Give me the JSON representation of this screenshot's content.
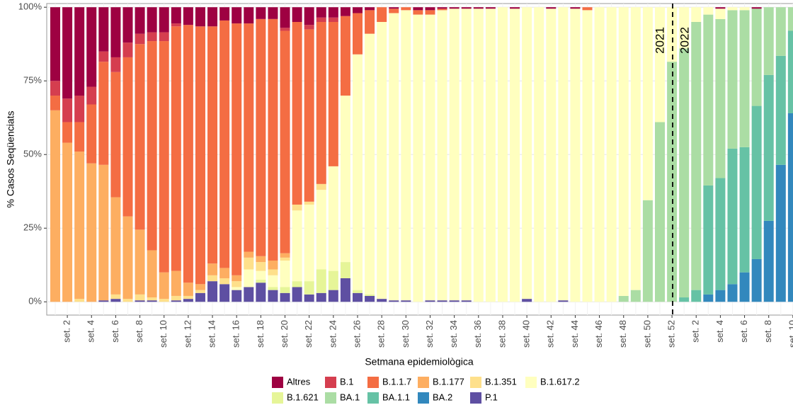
{
  "chart_data": {
    "type": "stacked-bar",
    "y_label": "% Casos Seqüenciats",
    "x_label": "Setmana epidemiològica",
    "annotations": [
      "2021",
      "2022"
    ],
    "legend": "bottom",
    "grid": true,
    "ylim": [
      -4.5,
      101.25
    ],
    "yticks": [
      {
        "value": 0,
        "label": "0%"
      },
      {
        "value": 25,
        "label": "25%"
      },
      {
        "value": 50,
        "label": "50%"
      },
      {
        "value": 75,
        "label": "75%"
      },
      {
        "value": 100,
        "label": "100%"
      }
    ],
    "categories": [
      null,
      "set. 2",
      null,
      "set. 4",
      null,
      "set. 6",
      null,
      "set. 8",
      null,
      "set. 10",
      null,
      "set. 12",
      null,
      "set. 14",
      null,
      "set. 16",
      null,
      "set. 18",
      null,
      "set. 20",
      null,
      "set. 22",
      null,
      "set. 24",
      null,
      "set. 26",
      null,
      "set. 28",
      null,
      "set. 30",
      null,
      "set. 32",
      null,
      "set. 34",
      null,
      "set. 36",
      null,
      "set. 38",
      null,
      "set. 40",
      null,
      "set. 42",
      null,
      "set. 44",
      null,
      "set. 46",
      null,
      "set. 48",
      null,
      "set. 50",
      null,
      "set. 52",
      null,
      "set. 2",
      null,
      "set. 4",
      null,
      "set. 6",
      null,
      "set. 8",
      null,
      "set. 10"
    ],
    "series": [
      {
        "name": "Altres",
        "color": "#9e0142",
        "values": [
          25,
          31,
          30,
          27,
          15,
          17,
          12,
          9,
          8.5,
          8.5,
          5.5,
          6,
          6.5,
          6.5,
          4.5,
          5.5,
          5.5,
          4,
          4,
          7,
          5,
          6,
          3.5,
          3.5,
          3,
          2,
          1,
          0,
          0.5,
          0,
          1,
          1,
          0.5,
          0.5,
          0.5,
          0.5,
          0.5,
          0,
          0.5,
          0,
          0,
          0.5,
          0,
          0.5,
          0,
          0,
          0,
          0,
          0,
          0,
          0,
          0,
          0,
          0,
          0,
          0.5,
          0,
          0,
          0.5,
          0,
          0,
          0
        ]
      },
      {
        "name": "B.1",
        "color": "#d53e4f",
        "values": [
          5,
          8,
          9,
          6,
          3.5,
          5,
          5,
          3.5,
          3,
          3,
          1,
          0,
          0,
          0,
          0,
          0,
          0,
          0,
          0,
          1,
          0,
          1.5,
          1.5,
          1.5,
          0,
          0,
          0,
          0,
          0,
          0,
          0,
          0,
          0,
          0,
          0,
          0,
          0,
          0,
          0,
          0,
          0,
          0,
          0,
          0,
          0,
          0,
          0,
          0,
          0,
          0,
          0,
          0,
          0,
          0,
          0,
          0,
          0,
          0,
          0,
          0,
          0,
          0
        ]
      },
      {
        "name": "B.1.1.7",
        "color": "#f46d43",
        "values": [
          5,
          7,
          10,
          20,
          35,
          42.5,
          54,
          63,
          71,
          78.5,
          83,
          87.5,
          87.5,
          80.5,
          84,
          85.5,
          77.5,
          80.5,
          82,
          75.5,
          62,
          58.5,
          55,
          49,
          27,
          14,
          8,
          5,
          1.5,
          1,
          1.5,
          1.5,
          0.5,
          0,
          0,
          0,
          0,
          0,
          0,
          0,
          0,
          0,
          0,
          0,
          1,
          0,
          0,
          0,
          0,
          0,
          0,
          0,
          0,
          0,
          0,
          0,
          0,
          0,
          0,
          0,
          0,
          0
        ]
      },
      {
        "name": "B.1.177",
        "color": "#fdae61",
        "values": [
          65,
          54,
          50,
          47,
          46,
          33,
          28,
          22,
          16,
          9,
          8.5,
          4.5,
          2,
          4,
          3.5,
          2,
          2,
          2,
          3,
          1.5,
          0,
          0,
          0,
          0,
          0,
          0,
          0,
          0,
          0,
          0,
          0,
          0,
          0,
          0,
          0,
          0,
          0,
          0,
          0,
          0,
          0,
          0,
          0,
          0,
          0,
          0,
          0,
          0,
          0,
          0,
          0,
          0,
          0,
          0,
          0,
          0,
          0,
          0,
          0,
          0,
          0,
          0
        ]
      },
      {
        "name": "B.1.351",
        "color": "#fee08b",
        "values": [
          0,
          0,
          1,
          0,
          0,
          1.5,
          1,
          2,
          1,
          1,
          1.5,
          1,
          1,
          2,
          2,
          2,
          4,
          3,
          2,
          1,
          2,
          1,
          2,
          0,
          0,
          0,
          0,
          0,
          0,
          0,
          0,
          0,
          0,
          0,
          0,
          0,
          0,
          0,
          0,
          0,
          0,
          0,
          0,
          0,
          0,
          0,
          0,
          0,
          0,
          0,
          0,
          0,
          0,
          0,
          0,
          0,
          0,
          0,
          0,
          0,
          0,
          0
        ]
      },
      {
        "name": "B.1.617.2",
        "color": "#ffffbf",
        "values": [
          0,
          0,
          0,
          0,
          0,
          0,
          0,
          0,
          0,
          0,
          0,
          0,
          0,
          0,
          0,
          1,
          6,
          3,
          4,
          9,
          24,
          26,
          27,
          35.5,
          56.5,
          80,
          88.5,
          94,
          97.5,
          98.5,
          97.5,
          97,
          98.5,
          99,
          99,
          99.5,
          99.5,
          100,
          99.5,
          99,
          100,
          99.5,
          99.5,
          99.5,
          99,
          100,
          100,
          98,
          96,
          65.5,
          39,
          18.5,
          14,
          5,
          2.5,
          3.5,
          1,
          1,
          0,
          0,
          0,
          0
        ]
      },
      {
        "name": "B.1.621",
        "color": "#e6f598",
        "values": [
          0,
          0,
          0,
          0,
          0,
          0,
          0,
          0,
          0,
          0,
          0,
          0,
          0,
          0,
          0,
          0,
          0,
          1,
          1,
          2,
          2,
          4.5,
          8,
          6.5,
          5.5,
          1,
          0.5,
          0,
          0,
          0,
          0,
          0,
          0,
          0,
          0,
          0,
          0,
          0,
          0,
          0,
          0,
          0,
          0,
          0,
          0,
          0,
          0,
          0,
          0,
          0,
          0,
          0,
          0,
          0,
          0,
          0,
          0,
          0,
          0,
          0,
          0,
          0
        ]
      },
      {
        "name": "BA.1",
        "color": "#abdda4",
        "values": [
          0,
          0,
          0,
          0,
          0,
          0,
          0,
          0,
          0,
          0,
          0,
          0,
          0,
          0,
          0,
          0,
          0,
          0,
          0,
          0,
          0,
          0,
          0,
          0,
          0,
          0,
          0,
          0,
          0,
          0,
          0,
          0,
          0,
          0,
          0,
          0,
          0,
          0,
          0,
          0,
          0,
          0,
          0,
          0,
          0,
          0,
          0,
          2,
          4,
          34.5,
          61,
          81.5,
          84.5,
          91,
          58,
          54,
          47,
          46.5,
          33,
          23,
          16.5,
          8
        ]
      },
      {
        "name": "BA.1.1",
        "color": "#66c2a5",
        "values": [
          0,
          0,
          0,
          0,
          0,
          0,
          0,
          0,
          0,
          0,
          0,
          0,
          0,
          0,
          0,
          0,
          0,
          0,
          0,
          0,
          0,
          0,
          0,
          0,
          0,
          0,
          0,
          0,
          0,
          0,
          0,
          0,
          0,
          0,
          0,
          0,
          0,
          0,
          0,
          0,
          0,
          0,
          0,
          0,
          0,
          0,
          0,
          0,
          0,
          0,
          0,
          0,
          1.5,
          4,
          37,
          38,
          46,
          42.5,
          52,
          49.5,
          37,
          28
        ]
      },
      {
        "name": "BA.2",
        "color": "#3288bd",
        "values": [
          0,
          0,
          0,
          0,
          0,
          0,
          0,
          0,
          0,
          0,
          0,
          0,
          0,
          0,
          0,
          0,
          0,
          0,
          0,
          0,
          0,
          0,
          0,
          0,
          0,
          0,
          0,
          0,
          0,
          0,
          0,
          0,
          0,
          0,
          0,
          0,
          0,
          0,
          0,
          0,
          0,
          0,
          0,
          0,
          0,
          0,
          0,
          0,
          0,
          0,
          0,
          0,
          0,
          0,
          2.5,
          4,
          6,
          10,
          14.5,
          27.5,
          46.5,
          64
        ]
      },
      {
        "name": "P.1",
        "color": "#5e4fa2",
        "values": [
          0,
          0,
          0,
          0,
          0.5,
          1,
          0,
          0.5,
          0.5,
          0,
          0.5,
          1,
          3,
          7,
          6,
          4,
          5,
          6.5,
          4,
          3,
          5,
          2.5,
          3,
          4,
          8,
          3,
          2,
          1,
          0.5,
          0.5,
          0,
          0.5,
          0.5,
          0.5,
          0.5,
          0,
          0,
          0,
          0,
          1,
          0,
          0,
          0.5,
          0,
          0,
          0,
          0,
          0,
          0,
          0,
          0,
          0,
          0,
          0,
          0,
          0,
          0,
          0,
          0,
          0,
          0,
          0
        ]
      }
    ]
  }
}
